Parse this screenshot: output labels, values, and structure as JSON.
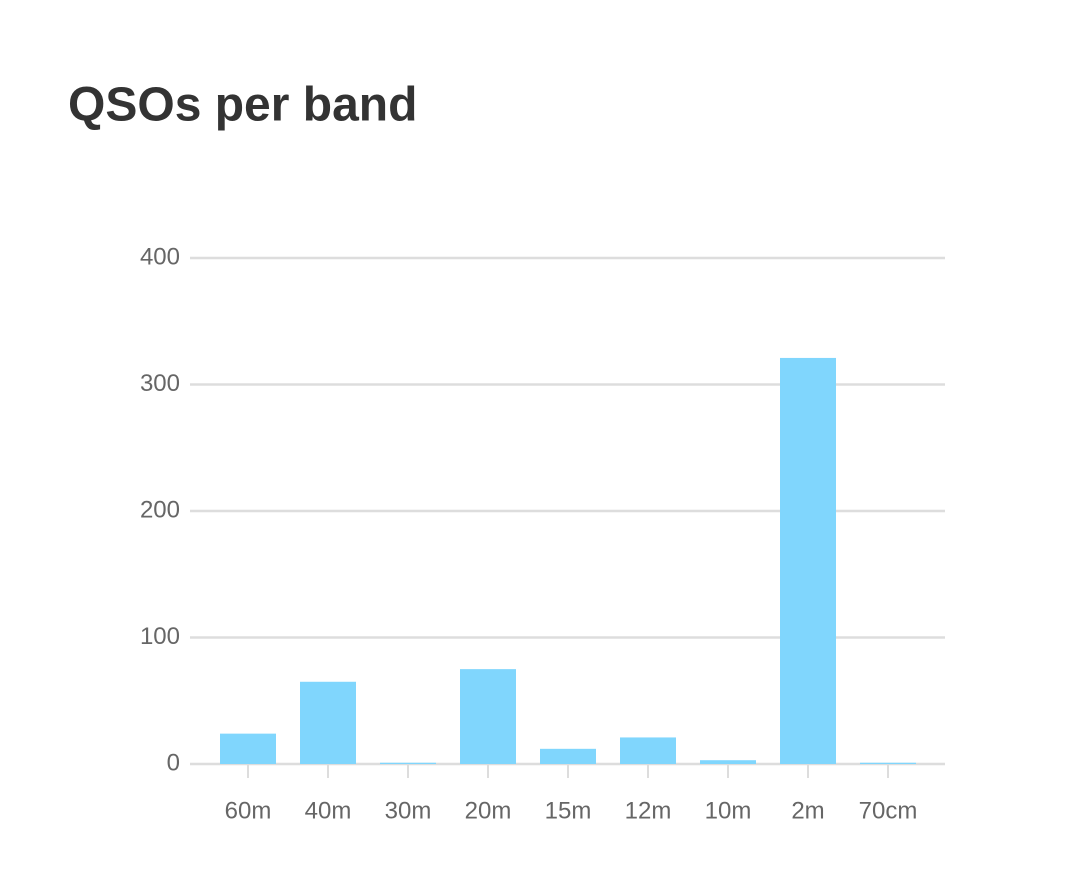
{
  "chart_data": {
    "type": "bar",
    "title": "QSOs per band",
    "categories": [
      "60m",
      "40m",
      "30m",
      "20m",
      "15m",
      "12m",
      "10m",
      "2m",
      "70cm"
    ],
    "values": [
      24,
      65,
      1,
      75,
      12,
      21,
      3,
      321,
      1
    ],
    "color": "#80d6fd",
    "ylim": [
      0,
      400
    ],
    "yticks": [
      0,
      100,
      200,
      300,
      400
    ],
    "grid": true
  }
}
